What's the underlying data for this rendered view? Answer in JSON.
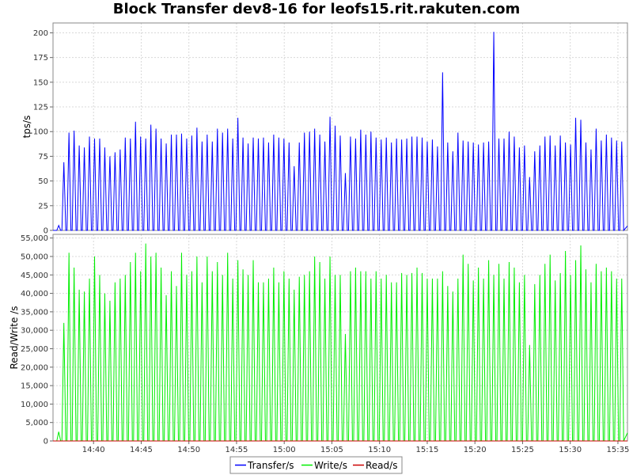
{
  "chart_data": {
    "type": "line",
    "title": "Block Transfer dev8-16 for leofs15.rit.rakuten.com",
    "x": {
      "tick_labels": [
        "14:40",
        "14:45",
        "14:50",
        "14:55",
        "15:00",
        "15:05",
        "15:10",
        "15:15",
        "15:20",
        "15:25",
        "15:30",
        "15:35"
      ],
      "range": [
        "14:35:45",
        "15:36:00"
      ],
      "grid": true
    },
    "panels": [
      {
        "ylabel": "tps/s",
        "ylim": [
          0,
          210
        ],
        "yticks": [
          0,
          25,
          50,
          75,
          100,
          125,
          150,
          175,
          200
        ],
        "yticks_text": [
          "0",
          "25",
          "50",
          "75",
          "100",
          "125",
          "150",
          "175",
          "200"
        ],
        "series": [
          {
            "name": "Transfer/s",
            "color": "#0000ff",
            "note_peaks": "periodic spikes (period ~0.5 min) returning to ~0 between peaks",
            "peaks": [
              5,
              69,
              99,
              101,
              86,
              84,
              95,
              93,
              93,
              84,
              75,
              79,
              82,
              94,
              93,
              110,
              95,
              93,
              107,
              103,
              93,
              88,
              97,
              97,
              98,
              93,
              96,
              104,
              90,
              97,
              90,
              103,
              99,
              103,
              93,
              114,
              94,
              88,
              94,
              93,
              94,
              89,
              97,
              94,
              93,
              89,
              65,
              89,
              99,
              100,
              103,
              97,
              90,
              115,
              106,
              96,
              58,
              95,
              93,
              102,
              97,
              100,
              94,
              92,
              94,
              89,
              93,
              92,
              93,
              95,
              95,
              94,
              90,
              92,
              85,
              160,
              89,
              80,
              99,
              91,
              90,
              89,
              87,
              89,
              90,
              201,
              93,
              93,
              100,
              95,
              84,
              86,
              54,
              80,
              86,
              95,
              96,
              86,
              96,
              89,
              87,
              114,
              112,
              89,
              82,
              103,
              91,
              97,
              94,
              91,
              90
            ]
          }
        ]
      },
      {
        "ylabel": "Read/Write /s",
        "ylim": [
          0,
          56000
        ],
        "yticks": [
          0,
          5000,
          10000,
          15000,
          20000,
          25000,
          30000,
          35000,
          40000,
          45000,
          50000,
          55000
        ],
        "yticks_text": [
          "0",
          "5,000",
          "10,000",
          "15,000",
          "20,000",
          "25,000",
          "30,000",
          "35,000",
          "40,000",
          "45,000",
          "50,000",
          "55,000"
        ],
        "series": [
          {
            "name": "Write/s",
            "color": "#00ee00",
            "peaks": [
              2500,
              32000,
              51000,
              47000,
              41000,
              40500,
              44000,
              50000,
              45000,
              40000,
              38000,
              43000,
              44000,
              45000,
              48500,
              51000,
              46000,
              53500,
              50000,
              51000,
              47000,
              39500,
              46000,
              42000,
              51000,
              45000,
              46000,
              50000,
              43000,
              50000,
              46000,
              48500,
              45000,
              51000,
              44000,
              49000,
              46500,
              45000,
              49000,
              43000,
              43000,
              44000,
              47000,
              43000,
              46000,
              44000,
              41000,
              44500,
              45000,
              46000,
              50000,
              48500,
              44000,
              50000,
              45000,
              45000,
              29000,
              46000,
              47000,
              46000,
              46000,
              44000,
              46000,
              44000,
              45000,
              43000,
              43000,
              45500,
              45000,
              45500,
              47000,
              45500,
              44000,
              44000,
              44000,
              46000,
              42000,
              40500,
              44000,
              50500,
              48000,
              43500,
              47000,
              44000,
              49000,
              45000,
              48000,
              44000,
              48500,
              47000,
              43000,
              45000,
              26000,
              42500,
              45000,
              48000,
              50500,
              43500,
              45500,
              51500,
              45000,
              49000,
              53000,
              46500,
              43000,
              48000,
              46000,
              47000,
              46000,
              44000,
              44000
            ]
          },
          {
            "name": "Read/s",
            "color": "#cc0000",
            "values_note": "zero throughout",
            "peaks": [
              0
            ]
          }
        ]
      }
    ],
    "legend": {
      "placement": "bottom-center",
      "entries": [
        "Transfer/s",
        "Write/s",
        "Read/s"
      ]
    }
  }
}
